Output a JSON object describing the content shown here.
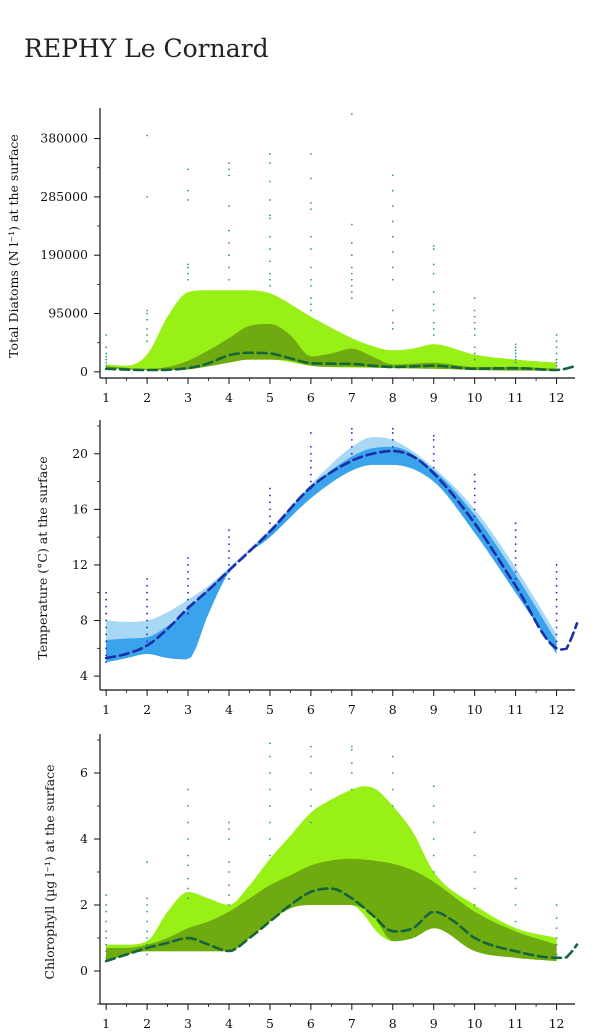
{
  "page": {
    "title": "REPHY Le Cornard"
  },
  "chart_data": [
    {
      "type": "area",
      "ylabel": "Total Diatoms (N l⁻¹) at the surface",
      "x_ticks": [
        1,
        2,
        3,
        4,
        5,
        6,
        7,
        8,
        9,
        10,
        11,
        12
      ],
      "y_ticks": [
        0,
        95000,
        190000,
        285000,
        380000
      ],
      "y_tick_labels": [
        "0",
        "95000",
        "190000",
        "285000",
        "380000"
      ],
      "xlim": [
        0.85,
        12.45
      ],
      "ylim": [
        -10000,
        420000
      ],
      "colors": {
        "outer": "#99f016",
        "inner": "#6eaa10",
        "median": "#15653a",
        "points": "#2a9a8a"
      },
      "series": [
        {
          "role": "outer_band",
          "x": [
            1,
            1.5,
            2,
            2.5,
            3,
            3.5,
            4,
            4.5,
            5,
            6,
            7,
            7.5,
            8,
            8.5,
            9,
            10,
            11,
            12
          ],
          "upper": [
            12000,
            10000,
            28000,
            90000,
            130000,
            133000,
            133000,
            133000,
            128000,
            90000,
            55000,
            42000,
            35000,
            38000,
            45000,
            28000,
            20000,
            15000
          ],
          "lower": [
            7000,
            5000,
            5000,
            5000,
            6000,
            10000,
            18000,
            20000,
            20000,
            10000,
            7000,
            7000,
            7000,
            7000,
            7000,
            5000,
            4000,
            3000
          ]
        },
        {
          "role": "inner_band",
          "x": [
            1,
            2,
            2.5,
            3,
            3.5,
            4,
            4.5,
            5,
            5.5,
            6,
            6.5,
            7,
            7.5,
            8,
            9,
            10,
            11,
            12
          ],
          "upper": [
            9000,
            5000,
            8000,
            18000,
            35000,
            55000,
            75000,
            78000,
            60000,
            25000,
            30000,
            38000,
            25000,
            12000,
            15000,
            8000,
            8000,
            5000
          ],
          "lower": [
            6000,
            3000,
            3000,
            4000,
            9000,
            15000,
            20000,
            20000,
            18000,
            10000,
            8000,
            8000,
            7000,
            6000,
            5000,
            3000,
            2000,
            2000
          ]
        },
        {
          "role": "median",
          "name": "",
          "x": [
            1,
            2,
            3,
            3.5,
            4,
            4.5,
            5,
            5.5,
            6,
            7,
            7.5,
            8,
            9,
            10,
            11,
            12,
            12.5
          ],
          "y": [
            5000,
            3000,
            6000,
            14000,
            27000,
            31000,
            30000,
            22000,
            14000,
            13000,
            10000,
            8000,
            10000,
            5000,
            6000,
            3000,
            10000
          ]
        }
      ],
      "observations": [
        [
          1,
          [
            10000,
            15000,
            20000,
            25000,
            30000,
            40000,
            60000
          ]
        ],
        [
          2,
          [
            50000,
            60000,
            70000,
            85000,
            95000,
            100000,
            285000,
            385000
          ]
        ],
        [
          3,
          [
            150000,
            160000,
            170000,
            175000,
            280000,
            295000,
            330000
          ]
        ],
        [
          4,
          [
            150000,
            170000,
            190000,
            210000,
            230000,
            270000,
            320000,
            330000,
            340000
          ]
        ],
        [
          5,
          [
            140000,
            150000,
            160000,
            180000,
            200000,
            220000,
            250000,
            255000,
            280000,
            310000,
            340000,
            355000
          ]
        ],
        [
          6,
          [
            100000,
            110000,
            120000,
            140000,
            150000,
            170000,
            200000,
            220000,
            265000,
            275000,
            315000,
            355000
          ]
        ],
        [
          7,
          [
            120000,
            130000,
            140000,
            150000,
            160000,
            170000,
            190000,
            210000,
            240000,
            420000
          ]
        ],
        [
          8,
          [
            70000,
            80000,
            100000,
            150000,
            170000,
            195000,
            220000,
            245000,
            270000,
            295000,
            320000
          ]
        ],
        [
          9,
          [
            60000,
            70000,
            80000,
            100000,
            110000,
            130000,
            160000,
            175000,
            200000,
            205000
          ]
        ],
        [
          10,
          [
            20000,
            30000,
            40000,
            60000,
            70000,
            80000,
            90000,
            100000,
            120000
          ]
        ],
        [
          11,
          [
            15000,
            20000,
            25000,
            30000,
            35000,
            40000,
            45000
          ]
        ],
        [
          12,
          [
            10000,
            15000,
            20000,
            30000,
            40000,
            50000,
            60000
          ]
        ]
      ]
    },
    {
      "type": "area",
      "ylabel": "Temperature (°C) at the surface",
      "x_ticks": [
        1,
        2,
        3,
        4,
        5,
        6,
        7,
        8,
        9,
        10,
        11,
        12
      ],
      "y_ticks": [
        4,
        8,
        12,
        16,
        20
      ],
      "y_tick_labels": [
        "4",
        "8",
        "12",
        "16",
        "20"
      ],
      "xlim": [
        0.85,
        12.45
      ],
      "ylim": [
        3,
        22
      ],
      "colors": {
        "outer": "#a9d8f4",
        "inner": "#3aa3ec",
        "median": "#1a2ea8",
        "points": "#2326c8"
      },
      "series": [
        {
          "role": "outer_band",
          "x": [
            1,
            1.5,
            2,
            2.5,
            3,
            3.5,
            4,
            5,
            6,
            7,
            7.5,
            8,
            9,
            10,
            11,
            12
          ],
          "upper": [
            8.0,
            7.9,
            8.0,
            8.6,
            9.5,
            10.5,
            11.8,
            14.6,
            17.8,
            20.5,
            21.2,
            21.0,
            19.0,
            16.0,
            11.8,
            7.0
          ],
          "lower": [
            5.0,
            5.3,
            5.6,
            5.3,
            5.2,
            8.5,
            11.5,
            14.0,
            16.8,
            18.8,
            19.2,
            19.2,
            18.0,
            14.3,
            10.0,
            5.6
          ]
        },
        {
          "role": "inner_band",
          "x": [
            1,
            1.5,
            2,
            2.5,
            3,
            3.5,
            4,
            5,
            6,
            7,
            7.5,
            8,
            9,
            10,
            11,
            12
          ],
          "upper": [
            6.6,
            6.7,
            6.8,
            7.6,
            8.8,
            10.3,
            11.7,
            14.4,
            17.6,
            19.8,
            20.4,
            20.5,
            18.8,
            15.6,
            11.3,
            6.5
          ],
          "lower": [
            5.0,
            5.3,
            5.6,
            5.3,
            5.2,
            8.5,
            11.5,
            14.0,
            16.8,
            18.8,
            19.2,
            19.2,
            18.0,
            14.3,
            10.0,
            5.6
          ]
        },
        {
          "role": "median",
          "name": "",
          "x": [
            1,
            1.5,
            2,
            2.5,
            3,
            3.5,
            4,
            5,
            6,
            7,
            7.5,
            8,
            8.5,
            9,
            10,
            11,
            12,
            12.2,
            12.5
          ],
          "y": [
            5.3,
            5.6,
            6.2,
            7.4,
            8.9,
            10.2,
            11.6,
            14.4,
            17.6,
            19.5,
            20.0,
            20.2,
            19.8,
            18.6,
            15.0,
            10.5,
            6.0,
            5.9,
            7.8
          ]
        }
      ],
      "observations": [
        [
          1,
          [
            5.0,
            5.5,
            6.0,
            6.5,
            7.0,
            7.5,
            8.0,
            8.5,
            9.0,
            9.5,
            10.0
          ]
        ],
        [
          2,
          [
            6.5,
            7.0,
            7.5,
            8.0,
            8.5,
            9.0,
            9.5,
            10.0,
            10.5,
            11.0
          ]
        ],
        [
          3,
          [
            8.5,
            9.0,
            9.5,
            10.0,
            10.5,
            11.0,
            11.5,
            12.0,
            12.5
          ]
        ],
        [
          4,
          [
            11.0,
            11.5,
            12.0,
            12.5,
            13.0,
            13.5,
            14.0,
            14.5
          ]
        ],
        [
          5,
          [
            15.0,
            15.5,
            16.0,
            16.5,
            17.0,
            17.5
          ]
        ],
        [
          6,
          [
            17.5,
            18.0,
            18.5,
            19.0,
            19.5,
            20.0,
            20.5,
            21.5
          ]
        ],
        [
          7,
          [
            20.0,
            20.5,
            21.0,
            21.5,
            21.8
          ]
        ],
        [
          8,
          [
            20.5,
            21.0,
            21.5,
            21.8
          ]
        ],
        [
          9,
          [
            19.0,
            19.5,
            20.0,
            20.5,
            21.0,
            21.3
          ]
        ],
        [
          10,
          [
            15.5,
            16.0,
            16.5,
            17.0,
            17.5,
            18.0,
            18.5
          ]
        ],
        [
          11,
          [
            11.0,
            11.5,
            12.0,
            12.5,
            13.0,
            13.5,
            14.0,
            14.5,
            15.0
          ]
        ],
        [
          12,
          [
            6.0,
            6.5,
            7.0,
            7.5,
            8.0,
            8.5,
            9.0,
            9.5,
            10.0,
            10.5,
            11.0,
            11.5,
            12.0
          ]
        ]
      ]
    },
    {
      "type": "area",
      "ylabel": "Chlorophyll (µg l⁻¹) at the surface",
      "x_ticks": [
        1,
        2,
        3,
        4,
        5,
        6,
        7,
        8,
        9,
        10,
        11,
        12
      ],
      "y_ticks": [
        0,
        2,
        4,
        6
      ],
      "y_tick_labels": [
        "0",
        "2",
        "4",
        "6"
      ],
      "xlim": [
        0.85,
        12.45
      ],
      "ylim": [
        -1,
        7
      ],
      "colors": {
        "outer": "#99f016",
        "inner": "#6eaa10",
        "median": "#15653a",
        "points": "#2a9a8a"
      },
      "series": [
        {
          "role": "outer_band",
          "x": [
            1,
            1.5,
            2,
            2.5,
            3,
            3.5,
            4,
            4.5,
            5,
            5.5,
            6,
            6.5,
            7,
            7.3,
            7.6,
            8,
            8.5,
            9,
            10,
            11,
            12
          ],
          "upper": [
            0.8,
            0.8,
            0.9,
            1.8,
            2.4,
            2.2,
            2.0,
            2.6,
            3.4,
            4.1,
            4.8,
            5.2,
            5.5,
            5.6,
            5.5,
            5.0,
            4.2,
            3.0,
            2.0,
            1.3,
            1.0
          ],
          "lower": [
            0.3,
            0.5,
            0.6,
            0.6,
            0.6,
            0.6,
            0.6,
            1.0,
            1.5,
            1.9,
            2.0,
            2.0,
            2.0,
            1.7,
            1.2,
            0.9,
            1.0,
            1.3,
            0.6,
            0.4,
            0.3
          ]
        },
        {
          "role": "inner_band",
          "x": [
            1,
            1.5,
            2,
            2.5,
            3,
            3.5,
            4,
            4.5,
            5,
            5.5,
            6,
            6.5,
            7,
            7.5,
            8,
            8.5,
            9,
            10,
            11,
            12
          ],
          "upper": [
            0.7,
            0.7,
            0.8,
            1.0,
            1.3,
            1.5,
            1.8,
            2.2,
            2.6,
            2.9,
            3.2,
            3.35,
            3.4,
            3.35,
            3.25,
            3.05,
            2.7,
            1.8,
            1.2,
            0.8
          ],
          "lower": [
            0.3,
            0.5,
            0.6,
            0.6,
            0.6,
            0.6,
            0.6,
            1.0,
            1.5,
            1.9,
            2.0,
            2.0,
            2.0,
            1.7,
            0.9,
            1.0,
            1.3,
            0.6,
            0.4,
            0.3
          ]
        },
        {
          "role": "median",
          "name": "",
          "x": [
            1,
            1.5,
            2,
            2.5,
            3,
            3.5,
            4,
            4.5,
            5,
            5.5,
            6,
            6.5,
            7,
            7.5,
            8,
            8.5,
            9,
            9.5,
            10,
            11,
            12,
            12.2,
            12.5
          ],
          "y": [
            0.3,
            0.5,
            0.7,
            0.85,
            1.0,
            0.8,
            0.6,
            1.0,
            1.5,
            2.0,
            2.4,
            2.5,
            2.2,
            1.7,
            1.2,
            1.3,
            1.8,
            1.5,
            1.0,
            0.6,
            0.4,
            0.4,
            0.8
          ]
        }
      ],
      "observations": [
        [
          1,
          [
            0.4,
            0.6,
            0.8,
            1.0,
            1.2,
            1.5,
            1.8,
            2.0,
            2.3
          ]
        ],
        [
          2,
          [
            0.5,
            0.8,
            1.0,
            1.2,
            1.5,
            1.8,
            2.0,
            2.2,
            3.3
          ]
        ],
        [
          3,
          [
            2.2,
            2.5,
            2.8,
            3.2,
            3.5,
            4.0,
            4.5,
            5.0,
            5.5
          ]
        ],
        [
          4,
          [
            2.0,
            2.3,
            2.6,
            3.0,
            3.3,
            4.0,
            4.3,
            4.5
          ]
        ],
        [
          5,
          [
            3.5,
            4.0,
            4.5,
            5.0,
            5.5,
            6.0,
            6.5,
            6.9
          ]
        ],
        [
          6,
          [
            4.5,
            5.0,
            5.5,
            6.0,
            6.5,
            6.8
          ]
        ],
        [
          7,
          [
            5.5,
            6.0,
            6.3,
            6.7,
            6.8
          ]
        ],
        [
          8,
          [
            5.0,
            5.5,
            6.0,
            6.5
          ]
        ],
        [
          9,
          [
            3.0,
            3.5,
            4.0,
            4.5,
            5.0,
            5.6
          ]
        ],
        [
          10,
          [
            1.5,
            2.0,
            2.5,
            3.0,
            3.5,
            4.2
          ]
        ],
        [
          11,
          [
            1.0,
            1.5,
            2.0,
            2.5,
            2.8
          ]
        ],
        [
          12,
          [
            0.5,
            0.8,
            1.0,
            1.3,
            1.6,
            2.0
          ]
        ]
      ]
    }
  ]
}
